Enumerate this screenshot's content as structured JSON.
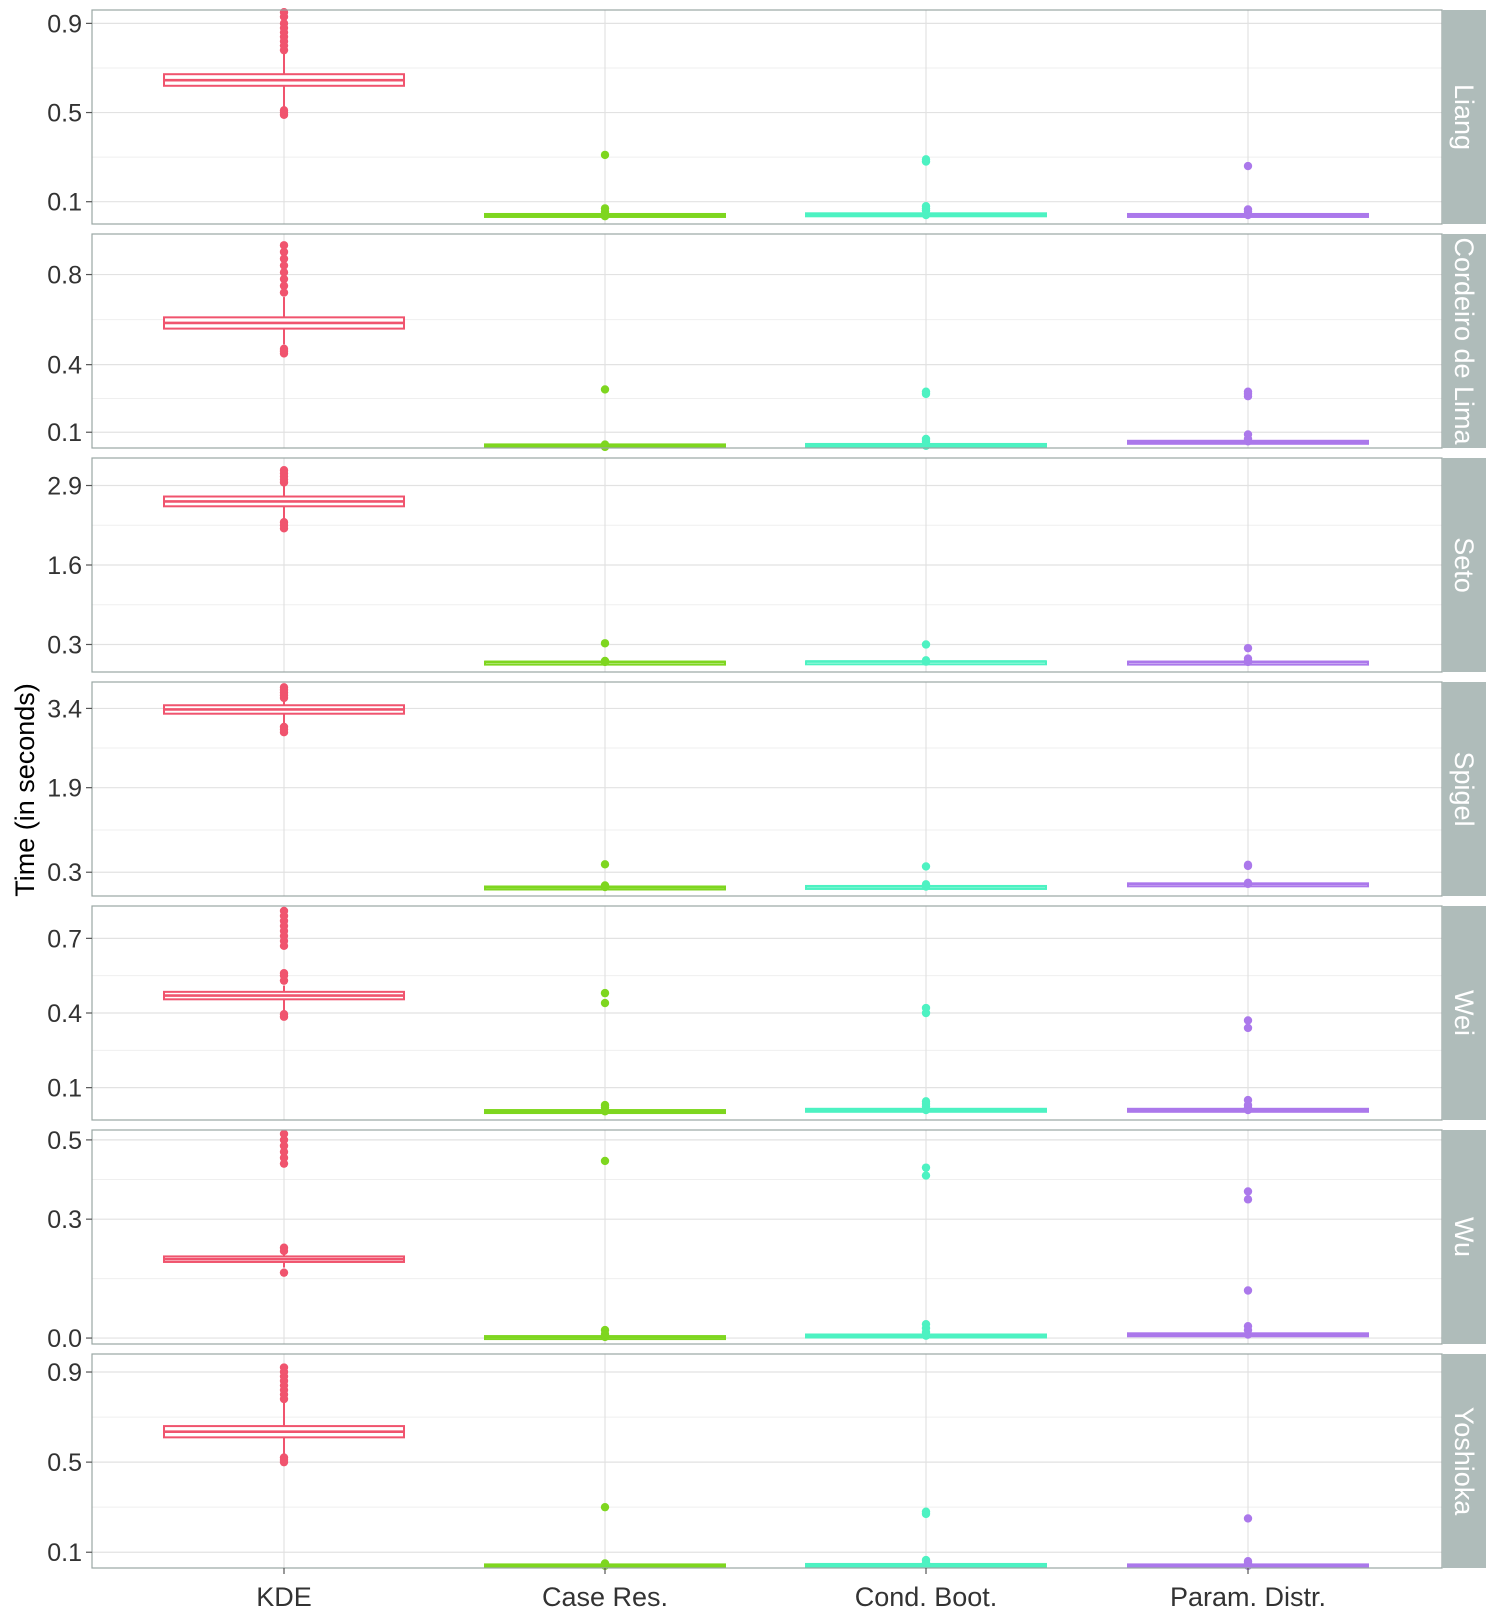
{
  "chart_data": {
    "type": "boxplot",
    "ylabel": "Time (in seconds)",
    "categories": [
      "KDE",
      "Case Res.",
      "Cond. Boot.",
      "Param. Distr."
    ],
    "colors": {
      "KDE": "#f0546e",
      "Case Res.": "#7ed61f",
      "Cond. Boot.": "#4df2c2",
      "Param. Distr.": "#ab78eb"
    },
    "strip_color": "#afbcba",
    "panels": [
      {
        "strip": "Liang",
        "ylim": [
          0.0,
          0.96
        ],
        "yticks": [
          0.1,
          0.5,
          0.9
        ],
        "boxes": [
          {
            "q1": 0.62,
            "median": 0.645,
            "q3": 0.672,
            "wlo": 0.52,
            "whi": 0.77,
            "outliers": [
              0.49,
              0.5,
              0.51,
              0.78,
              0.8,
              0.82,
              0.84,
              0.86,
              0.88,
              0.9,
              0.93,
              0.95
            ]
          },
          {
            "q1": 0.035,
            "median": 0.04,
            "q3": 0.045,
            "wlo": 0.03,
            "whi": 0.05,
            "outliers": [
              0.035,
              0.055,
              0.07,
              0.31
            ]
          },
          {
            "q1": 0.037,
            "median": 0.042,
            "q3": 0.048,
            "wlo": 0.032,
            "whi": 0.055,
            "outliers": [
              0.04,
              0.06,
              0.07,
              0.08,
              0.28,
              0.29
            ]
          },
          {
            "q1": 0.035,
            "median": 0.04,
            "q3": 0.045,
            "wlo": 0.03,
            "whi": 0.05,
            "outliers": [
              0.04,
              0.055,
              0.065,
              0.26
            ]
          }
        ]
      },
      {
        "strip": "Cordeiro de Lima",
        "ylim": [
          0.03,
          0.98
        ],
        "yticks": [
          0.1,
          0.4,
          0.8
        ],
        "boxes": [
          {
            "q1": 0.56,
            "median": 0.585,
            "q3": 0.61,
            "wlo": 0.49,
            "whi": 0.7,
            "outliers": [
              0.45,
              0.46,
              0.47,
              0.72,
              0.75,
              0.78,
              0.81,
              0.84,
              0.87,
              0.9,
              0.93
            ]
          },
          {
            "q1": 0.036,
            "median": 0.041,
            "q3": 0.046,
            "wlo": 0.031,
            "whi": 0.05,
            "outliers": [
              0.035,
              0.045,
              0.29
            ]
          },
          {
            "q1": 0.038,
            "median": 0.043,
            "q3": 0.048,
            "wlo": 0.033,
            "whi": 0.055,
            "outliers": [
              0.04,
              0.05,
              0.06,
              0.07,
              0.27,
              0.28
            ]
          },
          {
            "q1": 0.052,
            "median": 0.057,
            "q3": 0.062,
            "wlo": 0.048,
            "whi": 0.068,
            "outliers": [
              0.06,
              0.07,
              0.09,
              0.26,
              0.27,
              0.28
            ]
          }
        ]
      },
      {
        "strip": "Seto",
        "ylim": [
          -0.15,
          3.35
        ],
        "yticks": [
          0.3,
          1.6,
          2.9
        ],
        "boxes": [
          {
            "q1": 2.56,
            "median": 2.64,
            "q3": 2.72,
            "wlo": 2.35,
            "whi": 2.9,
            "outliers": [
              2.2,
              2.25,
              2.3,
              2.95,
              3.0,
              3.05,
              3.1,
              3.15
            ]
          },
          {
            "q1": 0.01,
            "median": 0.015,
            "q3": 0.02,
            "wlo": 0.005,
            "whi": 0.025,
            "outliers": [
              0.015,
              0.03,
              0.32
            ]
          },
          {
            "q1": 0.015,
            "median": 0.02,
            "q3": 0.025,
            "wlo": 0.01,
            "whi": 0.03,
            "outliers": [
              0.02,
              0.04,
              0.3
            ]
          },
          {
            "q1": 0.01,
            "median": 0.015,
            "q3": 0.02,
            "wlo": 0.005,
            "whi": 0.025,
            "outliers": [
              0.015,
              0.04,
              0.07,
              0.24
            ]
          }
        ]
      },
      {
        "strip": "Spigel",
        "ylim": [
          -0.15,
          3.9
        ],
        "yticks": [
          0.3,
          1.9,
          3.4
        ],
        "boxes": [
          {
            "q1": 3.3,
            "median": 3.38,
            "q3": 3.46,
            "wlo": 3.1,
            "whi": 3.58,
            "outliers": [
              2.95,
              3.0,
              3.05,
              3.6,
              3.65,
              3.7,
              3.75,
              3.8
            ]
          },
          {
            "q1": 0.01,
            "median": 0.02,
            "q3": 0.03,
            "wlo": 0.005,
            "whi": 0.04,
            "outliers": [
              0.02,
              0.05,
              0.45
            ]
          },
          {
            "q1": 0.02,
            "median": 0.03,
            "q3": 0.04,
            "wlo": 0.01,
            "whi": 0.05,
            "outliers": [
              0.03,
              0.07,
              0.41
            ]
          },
          {
            "q1": 0.07,
            "median": 0.08,
            "q3": 0.09,
            "wlo": 0.06,
            "whi": 0.1,
            "outliers": [
              0.08,
              0.1,
              0.42,
              0.44
            ]
          }
        ]
      },
      {
        "strip": "Wei",
        "ylim": [
          -0.03,
          0.83
        ],
        "yticks": [
          0.1,
          0.4,
          0.7
        ],
        "boxes": [
          {
            "q1": 0.455,
            "median": 0.47,
            "q3": 0.485,
            "wlo": 0.41,
            "whi": 0.51,
            "outliers": [
              0.385,
              0.395,
              0.53,
              0.55,
              0.56,
              0.67,
              0.69,
              0.71,
              0.73,
              0.75,
              0.77,
              0.79,
              0.81
            ]
          },
          {
            "q1": 0.0,
            "median": 0.005,
            "q3": 0.01,
            "wlo": -0.005,
            "whi": 0.015,
            "outliers": [
              0.005,
              0.02,
              0.03,
              0.44,
              0.48
            ]
          },
          {
            "q1": 0.005,
            "median": 0.01,
            "q3": 0.015,
            "wlo": 0.0,
            "whi": 0.02,
            "outliers": [
              0.01,
              0.025,
              0.035,
              0.045,
              0.4,
              0.42
            ]
          },
          {
            "q1": 0.005,
            "median": 0.01,
            "q3": 0.015,
            "wlo": 0.0,
            "whi": 0.02,
            "outliers": [
              0.01,
              0.02,
              0.03,
              0.05,
              0.34,
              0.37
            ]
          }
        ]
      },
      {
        "strip": "Wu",
        "ylim": [
          -0.015,
          0.525
        ],
        "yticks": [
          0.0,
          0.3,
          0.5
        ],
        "boxes": [
          {
            "q1": 0.192,
            "median": 0.199,
            "q3": 0.206,
            "wlo": 0.178,
            "whi": 0.215,
            "outliers": [
              0.165,
              0.22,
              0.228,
              0.44,
              0.455,
              0.47,
              0.485,
              0.5,
              0.515
            ]
          },
          {
            "q1": 0.001,
            "median": 0.003,
            "q3": 0.005,
            "wlo": 0.0,
            "whi": 0.007,
            "outliers": [
              0.003,
              0.01,
              0.02,
              0.447
            ]
          },
          {
            "q1": 0.003,
            "median": 0.006,
            "q3": 0.009,
            "wlo": 0.001,
            "whi": 0.012,
            "outliers": [
              0.006,
              0.015,
              0.025,
              0.035,
              0.41,
              0.43
            ]
          },
          {
            "q1": 0.006,
            "median": 0.009,
            "q3": 0.012,
            "wlo": 0.004,
            "whi": 0.015,
            "outliers": [
              0.009,
              0.02,
              0.03,
              0.12,
              0.35,
              0.37
            ]
          }
        ]
      },
      {
        "strip": "Yoshioka",
        "ylim": [
          0.03,
          0.98
        ],
        "yticks": [
          0.1,
          0.5,
          0.9
        ],
        "boxes": [
          {
            "q1": 0.61,
            "median": 0.635,
            "q3": 0.66,
            "wlo": 0.52,
            "whi": 0.77,
            "outliers": [
              0.5,
              0.51,
              0.52,
              0.78,
              0.8,
              0.82,
              0.84,
              0.86,
              0.88,
              0.9,
              0.92
            ]
          },
          {
            "q1": 0.036,
            "median": 0.041,
            "q3": 0.046,
            "wlo": 0.031,
            "whi": 0.05,
            "outliers": [
              0.04,
              0.05,
              0.3
            ]
          },
          {
            "q1": 0.038,
            "median": 0.043,
            "q3": 0.048,
            "wlo": 0.033,
            "whi": 0.055,
            "outliers": [
              0.045,
              0.055,
              0.065,
              0.27,
              0.28
            ]
          },
          {
            "q1": 0.036,
            "median": 0.041,
            "q3": 0.046,
            "wlo": 0.031,
            "whi": 0.05,
            "outliers": [
              0.04,
              0.05,
              0.06,
              0.25
            ]
          }
        ]
      }
    ]
  }
}
